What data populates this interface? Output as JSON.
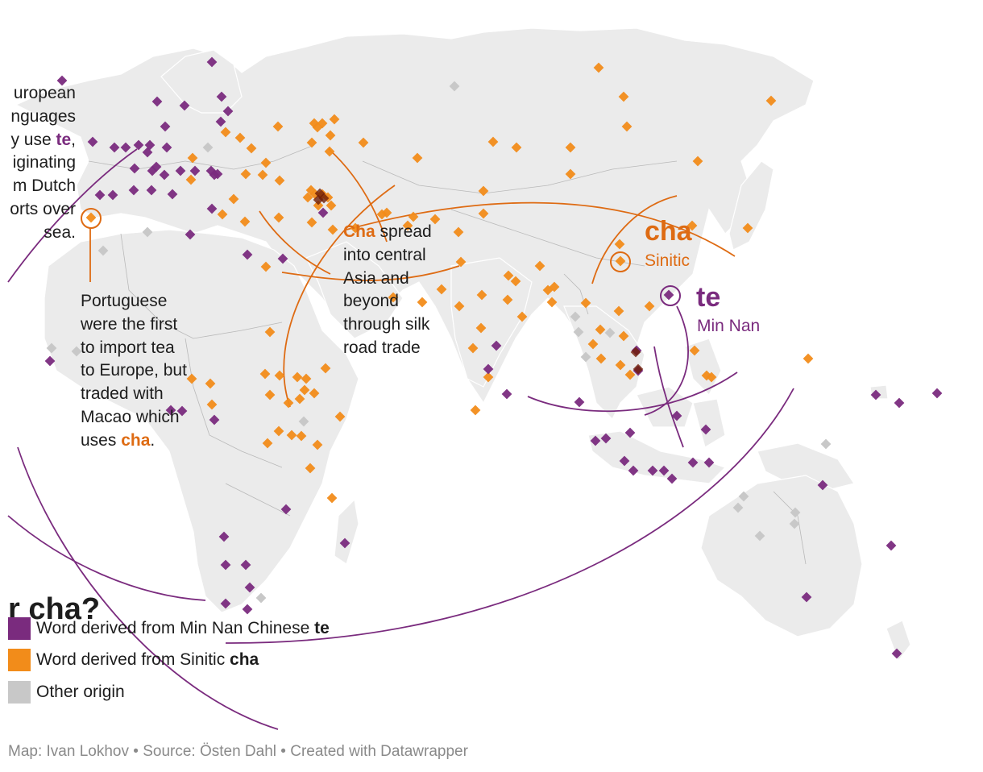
{
  "annotations": {
    "europe": {
      "lines": [
        "uropean",
        "nguages",
        "y use ",
        "iginating",
        "m Dutch",
        "orts over",
        "sea."
      ],
      "highlight": "te",
      "after_highlight": ","
    },
    "portugal": {
      "lines": [
        "Portuguese",
        "were the first",
        "to import tea",
        "to Europe, but",
        "traded with",
        "Macao which",
        "uses "
      ],
      "highlight": "cha",
      "after_highlight": "."
    },
    "silkroad": {
      "highlight": "Cha",
      "first_line_rest": " spread",
      "lines": [
        "into central",
        "Asia and",
        "beyond",
        "through silk",
        "road trade"
      ]
    }
  },
  "origin_labels": {
    "cha": "cha",
    "sinitic": "Sinitic",
    "te": "te",
    "min_nan": "Min Nan"
  },
  "title_fragment": "r cha?",
  "legend": {
    "te": {
      "prefix": "Word derived from Min Nan Chinese ",
      "bold": "te",
      "color": "#7a2b7e"
    },
    "cha": {
      "prefix": "Word derived from Sinitic ",
      "bold": "cha",
      "color": "#f28c1a"
    },
    "other": {
      "label": "Other origin",
      "color": "#c8c8c8"
    }
  },
  "footer": {
    "map": "Map: Ivan Lokhov",
    "sep1": " • ",
    "source": "Source: Östen Dahl",
    "sep2": " • ",
    "created": "Created with Datawrapper"
  },
  "colors": {
    "te": "#7a2b7e",
    "cha": "#f28c1a",
    "other": "#c8c8c8",
    "land": "#ebebeb",
    "arrow_te": "#7a2b7e",
    "arrow_cha": "#de6b13"
  }
}
